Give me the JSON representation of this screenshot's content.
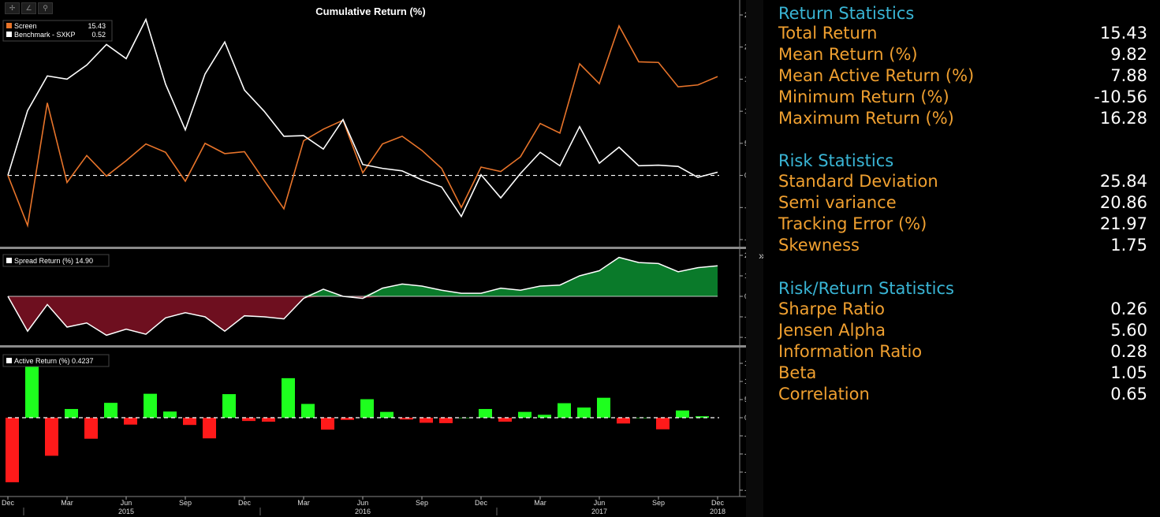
{
  "toolbar": {
    "icons": [
      {
        "name": "move-icon",
        "glyph": "✢"
      },
      {
        "name": "draw-icon",
        "glyph": "∠"
      },
      {
        "name": "zoom-icon",
        "glyph": "⚲"
      }
    ]
  },
  "colors": {
    "screen": "#e8742a",
    "benchmark": "#ffffff",
    "spread_positive": "#0a7a2a",
    "spread_negative": "#6e0f1f",
    "active_positive": "#1eff1e",
    "active_negative": "#ff1a1a",
    "stat_label": "#f0a030",
    "section_title": "#39b5d5"
  },
  "chart_data": [
    {
      "type": "line",
      "title": "Cumulative Return (%)",
      "ylim": [
        -10,
        25
      ],
      "yticks": [
        -10,
        -5,
        0,
        5,
        10,
        15,
        20,
        25
      ],
      "zero_line": "dashed",
      "legend_position": "top-left",
      "series": [
        {
          "name": "Screen",
          "legend_value": "15.43",
          "values": [
            0,
            -7.8,
            11.3,
            -1.1,
            3.1,
            -0.1,
            2.3,
            4.9,
            3.6,
            -0.9,
            5,
            3.4,
            3.7,
            -0.8,
            -5.2,
            5.4,
            7.2,
            8.6,
            0.4,
            4.9,
            6.1,
            3.9,
            1.1,
            -5,
            1.3,
            0.6,
            2.9,
            8.1,
            6.6,
            17.4,
            14.3,
            23.3,
            17.7,
            17.6,
            13.8,
            14.1,
            15.4
          ]
        },
        {
          "name": "Benchmark - SXKP",
          "legend_value": "0.52",
          "values": [
            0,
            10.1,
            15.5,
            15,
            17.2,
            20.4,
            18.2,
            24.3,
            14.2,
            7.1,
            15.8,
            20.8,
            13.3,
            10,
            6.1,
            6.2,
            4.1,
            8.7,
            1.7,
            1.1,
            0.7,
            -0.7,
            -1.8,
            -6.4,
            0.1,
            -3.5,
            0.3,
            3.6,
            1.5,
            7.6,
            1.9,
            4.4,
            1.5,
            1.6,
            1.4,
            -0.3,
            0.5
          ]
        }
      ]
    },
    {
      "type": "area",
      "ylim": [
        -20,
        20
      ],
      "yticks": [
        -20,
        -10,
        0,
        10,
        20
      ],
      "legend_position": "top-left",
      "series": [
        {
          "name": "Spread Return (%)",
          "legend_value": "14.90",
          "values": [
            0,
            -17,
            -4,
            -15,
            -13,
            -19,
            -16,
            -18.5,
            -10.5,
            -8,
            -10,
            -17,
            -9.5,
            -10,
            -11,
            -1,
            3.5,
            0,
            -1,
            4,
            6,
            5,
            3,
            1.5,
            1.5,
            4,
            3,
            5,
            5.5,
            10,
            12.5,
            19,
            16.5,
            16,
            12,
            14,
            14.9
          ]
        }
      ]
    },
    {
      "type": "bar",
      "ylim": [
        -20,
        15
      ],
      "yticks": [
        -20,
        -15,
        -10,
        -5,
        0,
        5,
        10,
        15
      ],
      "zero_line": "dashed",
      "legend_position": "top-left",
      "series": [
        {
          "name": "Active Return (%)",
          "legend_value": "0.4237",
          "values": [
            -17.8,
            15.4,
            -10.5,
            2.4,
            -5.8,
            4.1,
            -1.9,
            6.6,
            1.7,
            -2,
            -5.7,
            6.5,
            -0.9,
            -1.1,
            10.9,
            3.8,
            -3.3,
            -0.6,
            5.1,
            1.6,
            -0.5,
            -1.4,
            -1.5,
            0,
            2.4,
            -1.1,
            1.6,
            0.8,
            4,
            2.8,
            5.5,
            -1.6,
            0,
            -3.2,
            2,
            0.4
          ]
        }
      ]
    }
  ],
  "x_axis": {
    "month_ticks": [
      {
        "label": "Dec",
        "index": 0
      },
      {
        "label": "Mar",
        "index": 3
      },
      {
        "label": "Jun",
        "index": 6
      },
      {
        "label": "Sep",
        "index": 9
      },
      {
        "label": "Dec",
        "index": 12
      },
      {
        "label": "Mar",
        "index": 15
      },
      {
        "label": "Jun",
        "index": 18
      },
      {
        "label": "Sep",
        "index": 21
      },
      {
        "label": "Dec",
        "index": 24
      },
      {
        "label": "Mar",
        "index": 27
      },
      {
        "label": "Jun",
        "index": 30
      },
      {
        "label": "Sep",
        "index": 33
      },
      {
        "label": "Dec",
        "index": 36
      }
    ],
    "year_labels": [
      {
        "label": "2015",
        "index": 6
      },
      {
        "label": "2016",
        "index": 18
      },
      {
        "label": "2017",
        "index": 30
      },
      {
        "label": "2018",
        "index": 36
      }
    ]
  },
  "stats": {
    "return": {
      "title": "Return Statistics",
      "rows": [
        {
          "label": "Total Return",
          "value": "15.43"
        },
        {
          "label": "Mean Return (%)",
          "value": "9.82"
        },
        {
          "label": "Mean Active Return (%)",
          "value": "7.88"
        },
        {
          "label": "Minimum Return (%)",
          "value": "-10.56"
        },
        {
          "label": "Maximum Return (%)",
          "value": "16.28"
        }
      ]
    },
    "risk": {
      "title": "Risk Statistics",
      "rows": [
        {
          "label": "Standard Deviation",
          "value": "25.84"
        },
        {
          "label": "Semi variance",
          "value": "20.86"
        },
        {
          "label": "Tracking Error (%)",
          "value": "21.97"
        },
        {
          "label": "Skewness",
          "value": "1.75"
        }
      ]
    },
    "riskreturn": {
      "title": "Risk/Return Statistics",
      "rows": [
        {
          "label": "Sharpe Ratio",
          "value": "0.26"
        },
        {
          "label": "Jensen Alpha",
          "value": "5.60"
        },
        {
          "label": "Information Ratio",
          "value": "0.28"
        },
        {
          "label": "Beta",
          "value": "1.05"
        },
        {
          "label": "Correlation",
          "value": "0.65"
        }
      ]
    }
  },
  "collapse_glyph": "»"
}
